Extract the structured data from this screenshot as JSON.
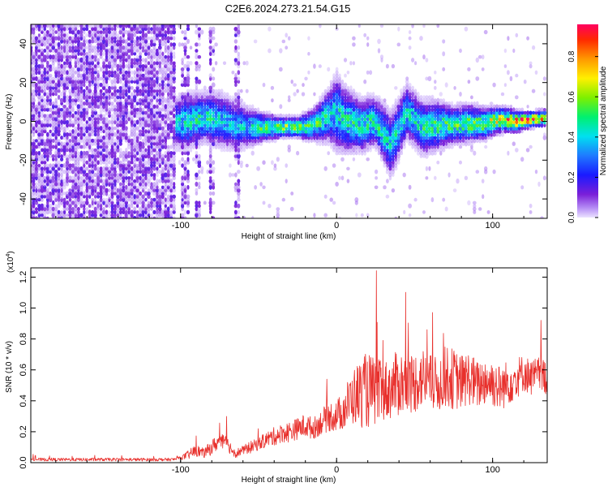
{
  "title": "C2E6.2024.273.21.54.G15",
  "colors": {
    "snr_line": "#e8302c",
    "axis": "#000000",
    "background": "#ffffff"
  },
  "chart_data": [
    {
      "type": "heatmap",
      "title": "C2E6.2024.273.21.54.G15",
      "xlabel": "Height of straight line (km)",
      "ylabel": "Frequency (Hz)",
      "xlim": [
        -196,
        135
      ],
      "ylim": [
        -50,
        50
      ],
      "x_ticks": [
        -100,
        0,
        100
      ],
      "x_tick_labels": [
        "-100",
        "0",
        "100"
      ],
      "y_ticks": [
        -40,
        -20,
        0,
        20,
        40
      ],
      "y_tick_labels": [
        "-40",
        "-20",
        "0",
        "20",
        "40"
      ],
      "colorbar": {
        "label": "Normalized spectral amplitude",
        "range": [
          0,
          0.96
        ],
        "ticks": [
          0.0,
          0.2,
          0.4,
          0.6,
          0.8
        ],
        "tick_labels": [
          "0.0",
          "0.2",
          "0.4",
          "0.6",
          "0.8"
        ],
        "colormap": "rainbow"
      },
      "ridge": {
        "x": [
          -105,
          -95,
          -85,
          -75,
          -65,
          -55,
          -45,
          -35,
          -25,
          -15,
          -5,
          0,
          5,
          15,
          25,
          35,
          45,
          55,
          65,
          75,
          85,
          95,
          105,
          115,
          125,
          135
        ],
        "center_freq": [
          -1,
          0,
          2,
          1,
          -2,
          -3,
          -3,
          -3,
          -3,
          -2,
          3,
          5,
          1,
          -2,
          0,
          -12,
          5,
          -3,
          -2,
          -2,
          -1,
          -1,
          1,
          0,
          1,
          2
        ],
        "spread": [
          9,
          10,
          9,
          10,
          9,
          7,
          5,
          4,
          4,
          6,
          10,
          14,
          12,
          10,
          9,
          12,
          10,
          10,
          9,
          7,
          7,
          6,
          5,
          4,
          3,
          3
        ],
        "peak_amplitude": [
          0.35,
          0.45,
          0.45,
          0.4,
          0.35,
          0.4,
          0.55,
          0.6,
          0.6,
          0.55,
          0.4,
          0.4,
          0.45,
          0.45,
          0.45,
          0.4,
          0.4,
          0.45,
          0.5,
          0.5,
          0.55,
          0.6,
          0.75,
          0.85,
          0.85,
          0.8
        ]
      },
      "noise_region": [
        -196,
        -103
      ],
      "noise_stripes": [
        -97,
        -89,
        -80,
        -64
      ]
    },
    {
      "type": "line",
      "xlabel": "Height of straight line (km)",
      "ylabel": "SNR (10 * v/v)",
      "y_scale_label": "(x10",
      "y_scale_exponent": "4",
      "y_scale_suffix": ")",
      "xlim": [
        -196,
        135
      ],
      "ylim": [
        0,
        1.26
      ],
      "x_ticks": [
        -100,
        0,
        100
      ],
      "x_tick_labels": [
        "-100",
        "0",
        "100"
      ],
      "y_ticks": [
        0.0,
        0.2,
        0.4,
        0.6,
        0.8,
        1.0,
        1.2
      ],
      "y_tick_labels": [
        "0.0",
        "0.2",
        "0.4",
        "0.6",
        "0.8",
        "1.0",
        "1.2"
      ],
      "series": [
        {
          "x": [
            -196,
            -180,
            -160,
            -140,
            -120,
            -105,
            -100,
            -95,
            -90,
            -85,
            -80,
            -75,
            -70,
            -65,
            -60,
            -55,
            -50,
            -45,
            -40,
            -35,
            -30,
            -25,
            -20,
            -15,
            -10,
            -5,
            0,
            5,
            10,
            15,
            20,
            25,
            30,
            35,
            40,
            45,
            50,
            55,
            60,
            65,
            70,
            75,
            80,
            85,
            90,
            95,
            100,
            105,
            110,
            115,
            120,
            125,
            130,
            135
          ],
          "values": [
            0.02,
            0.02,
            0.02,
            0.02,
            0.02,
            0.02,
            0.03,
            0.05,
            0.08,
            0.06,
            0.1,
            0.14,
            0.12,
            0.06,
            0.08,
            0.1,
            0.12,
            0.15,
            0.17,
            0.19,
            0.2,
            0.22,
            0.24,
            0.22,
            0.26,
            0.3,
            0.3,
            0.35,
            0.42,
            0.45,
            0.47,
            0.45,
            0.46,
            0.48,
            0.52,
            0.5,
            0.52,
            0.55,
            0.52,
            0.5,
            0.56,
            0.54,
            0.52,
            0.55,
            0.5,
            0.53,
            0.52,
            0.48,
            0.52,
            0.55,
            0.58,
            0.55,
            0.57,
            0.55
          ],
          "noise": [
            0.01,
            0.01,
            0.01,
            0.01,
            0.01,
            0.01,
            0.01,
            0.03,
            0.04,
            0.03,
            0.05,
            0.05,
            0.05,
            0.03,
            0.03,
            0.04,
            0.04,
            0.05,
            0.06,
            0.06,
            0.07,
            0.07,
            0.08,
            0.07,
            0.08,
            0.1,
            0.1,
            0.14,
            0.18,
            0.22,
            0.25,
            0.22,
            0.2,
            0.2,
            0.22,
            0.2,
            0.2,
            0.2,
            0.18,
            0.18,
            0.2,
            0.2,
            0.18,
            0.18,
            0.16,
            0.16,
            0.16,
            0.15,
            0.15,
            0.14,
            0.12,
            0.12,
            0.12,
            0.12
          ]
        }
      ]
    }
  ]
}
